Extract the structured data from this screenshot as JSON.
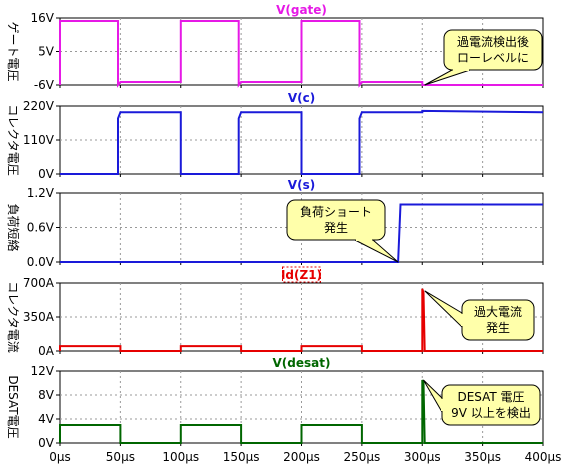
{
  "figure": {
    "x_ticks": [
      "0µs",
      "50µs",
      "100µs",
      "150µs",
      "200µs",
      "250µs",
      "300µs",
      "350µs",
      "400µs"
    ]
  },
  "chart_data": [
    {
      "type": "line",
      "title": "V(gate)",
      "ylabel": "ゲート電圧",
      "xlabel": "",
      "x_unit": "µs",
      "xlim": [
        0,
        400
      ],
      "ylim": [
        -6,
        16
      ],
      "yticks": [
        "16V",
        "5V",
        "-6V"
      ],
      "grid": true,
      "color": "#e619e6",
      "title_color": "#e619e6",
      "series": [
        {
          "x": [
            0,
            0,
            48,
            48,
            50,
            50,
            100,
            100,
            148,
            148,
            150,
            150,
            200,
            200,
            248,
            248,
            250,
            250,
            300,
            300,
            400
          ],
          "y": [
            -6,
            15,
            15,
            -6,
            -5,
            -5,
            -5,
            15,
            15,
            -6,
            -5,
            -5,
            -5,
            15,
            15,
            -6,
            -5,
            -5,
            -5,
            -6,
            -6
          ]
        }
      ],
      "annotation": {
        "lines": [
          "過電流検出後",
          "ローレベルに"
        ],
        "anchor_x": 302,
        "anchor_y": -6
      }
    },
    {
      "type": "line",
      "title": "V(c)",
      "ylabel": "コレクタ電圧",
      "xlabel": "",
      "x_unit": "µs",
      "xlim": [
        0,
        400
      ],
      "ylim": [
        0,
        220
      ],
      "yticks": [
        "220V",
        "110V",
        "0V"
      ],
      "grid": true,
      "color": "#1a1ad9",
      "title_color": "#1a1ad9",
      "series": [
        {
          "x": [
            0,
            48,
            48,
            50,
            50,
            100,
            100,
            148,
            148,
            150,
            150,
            200,
            200,
            248,
            248,
            250,
            250,
            300,
            300,
            400
          ],
          "y": [
            0,
            0,
            180,
            200,
            200,
            200,
            0,
            0,
            180,
            200,
            200,
            200,
            0,
            0,
            180,
            200,
            200,
            200,
            204,
            200
          ]
        }
      ]
    },
    {
      "type": "line",
      "title": "V(s)",
      "ylabel": "負荷短絡",
      "xlabel": "",
      "x_unit": "µs",
      "xlim": [
        0,
        400
      ],
      "ylim": [
        0,
        1.2
      ],
      "yticks": [
        "1.2V",
        "0.6V",
        "0.0V"
      ],
      "grid": true,
      "color": "#1a1ad9",
      "title_color": "#1a1ad9",
      "series": [
        {
          "x": [
            0,
            280,
            282,
            400
          ],
          "y": [
            0,
            0,
            1.0,
            1.0
          ]
        }
      ],
      "annotation": {
        "lines": [
          "負荷ショート",
          "発生"
        ],
        "anchor_x": 280,
        "anchor_y": 0
      }
    },
    {
      "type": "line",
      "title": "Id(Z1)",
      "ylabel": "コレクタ電流",
      "xlabel": "",
      "x_unit": "µs",
      "xlim": [
        0,
        400
      ],
      "ylim": [
        0,
        700
      ],
      "yticks": [
        "700A",
        "350A",
        "0A"
      ],
      "grid": true,
      "color": "#e60000",
      "title_color": "#e60000",
      "series": [
        {
          "x": [
            0,
            0,
            50,
            50,
            100,
            100,
            150,
            150,
            200,
            200,
            250,
            250,
            300,
            300,
            301,
            302,
            302,
            400
          ],
          "y": [
            0,
            50,
            50,
            0,
            0,
            50,
            50,
            0,
            0,
            50,
            50,
            0,
            0,
            640,
            600,
            0,
            0,
            0
          ]
        }
      ],
      "annotation": {
        "lines": [
          "過大電流",
          "発生"
        ],
        "anchor_x": 302,
        "anchor_y": 620
      }
    },
    {
      "type": "line",
      "title": "V(desat)",
      "ylabel": "DESAT電圧",
      "xlabel": "",
      "x_unit": "µs",
      "xlim": [
        0,
        400
      ],
      "ylim": [
        0,
        12
      ],
      "yticks": [
        "12V",
        "8V",
        "4V",
        "0V"
      ],
      "grid": true,
      "color": "#006600",
      "title_color": "#006600",
      "series": [
        {
          "x": [
            0,
            0,
            50,
            50,
            100,
            100,
            150,
            150,
            200,
            200,
            250,
            250,
            300,
            300,
            301,
            302,
            302,
            400
          ],
          "y": [
            0,
            3.0,
            3.0,
            0,
            0,
            3.0,
            3.0,
            0,
            0,
            3.0,
            3.0,
            0,
            0,
            10.5,
            10.0,
            0,
            0,
            0
          ]
        }
      ],
      "annotation": {
        "lines": [
          "DESAT 電圧",
          "9V 以上を検出"
        ],
        "anchor_x": 301,
        "anchor_y": 10.5
      }
    }
  ]
}
